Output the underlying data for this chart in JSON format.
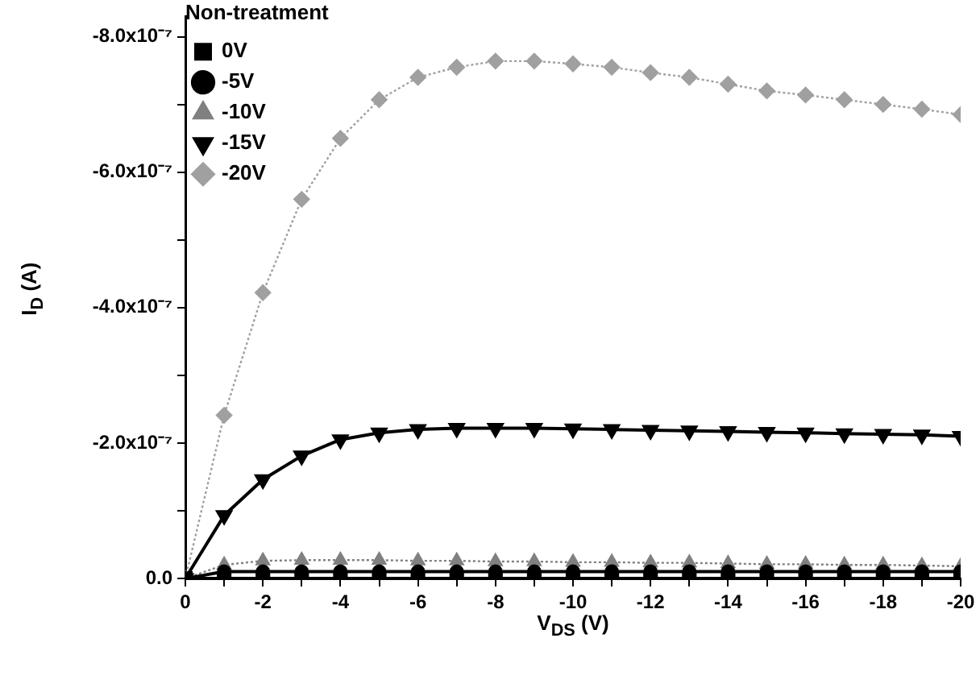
{
  "chart_data": {
    "type": "line",
    "xlabel": "V$_{DS}$ (V)",
    "ylabel": "I$_{D}$ (A)",
    "legend_title": "Non-treatment",
    "legend": "top left",
    "x": [
      0,
      -1,
      -2,
      -3,
      -4,
      -5,
      -6,
      -7,
      -8,
      -9,
      -10,
      -11,
      -12,
      -13,
      -14,
      -15,
      -16,
      -17,
      -18,
      -19,
      -20
    ],
    "series": [
      {
        "name": "0V",
        "color": "#000000",
        "marker": "square",
        "line_style": "solid",
        "values": [
          0,
          0,
          0,
          0,
          0,
          0,
          0,
          0,
          0,
          0,
          0,
          0,
          0,
          0,
          0,
          0,
          0,
          0,
          0,
          0,
          0
        ]
      },
      {
        "name": "-5V",
        "color": "#000000",
        "marker": "circle",
        "line_style": "solid",
        "values": [
          0,
          -1e-08,
          -1e-08,
          -1e-08,
          -1e-08,
          -1e-08,
          -1e-08,
          -1e-08,
          -1e-08,
          -1e-08,
          -1e-08,
          -1e-08,
          -1e-08,
          -1e-08,
          -1e-08,
          -1e-08,
          -1e-08,
          -1e-08,
          -1e-08,
          -1e-08,
          -1e-08
        ]
      },
      {
        "name": "-10V",
        "color": "#808080",
        "marker": "triangle",
        "line_style": "dotted",
        "values": [
          0,
          -2e-08,
          -2.6e-08,
          -2.7e-08,
          -2.7e-08,
          -2.7e-08,
          -2.6e-08,
          -2.6e-08,
          -2.5e-08,
          -2.5e-08,
          -2.4e-08,
          -2.4e-08,
          -2.3e-08,
          -2.3e-08,
          -2.2e-08,
          -2.1e-08,
          -2.1e-08,
          -2e-08,
          -2e-08,
          -1.9e-08,
          -1.8e-08
        ]
      },
      {
        "name": "-15V",
        "color": "#000000",
        "marker": "triangle-down",
        "line_style": "solid",
        "values": [
          0,
          -9.3e-08,
          -1.46e-07,
          -1.81e-07,
          -2.05e-07,
          -2.15e-07,
          -2.2e-07,
          -2.22e-07,
          -2.22e-07,
          -2.22e-07,
          -2.21e-07,
          -2.2e-07,
          -2.19e-07,
          -2.18e-07,
          -2.17e-07,
          -2.16e-07,
          -2.15e-07,
          -2.14e-07,
          -2.13e-07,
          -2.12e-07,
          -2.1e-07
        ]
      },
      {
        "name": "-20V",
        "color": "#a0a0a0",
        "marker": "diamond",
        "line_style": "dotted",
        "values": [
          0,
          -2.41e-07,
          -4.22e-07,
          -5.6e-07,
          -6.5e-07,
          -7.07e-07,
          -7.4e-07,
          -7.55e-07,
          -7.64e-07,
          -7.64e-07,
          -7.6e-07,
          -7.55e-07,
          -7.47e-07,
          -7.4e-07,
          -7.3e-07,
          -7.2e-07,
          -7.14e-07,
          -7.07e-07,
          -7e-07,
          -6.93e-07,
          -6.85e-07
        ]
      }
    ],
    "xlim": [
      0,
      -20
    ],
    "xticks": [
      0,
      {
        "value": -1,
        "label": null
      },
      -2,
      {
        "value": -3,
        "label": null
      },
      -4,
      {
        "value": -5,
        "label": null
      },
      -6,
      {
        "value": -7,
        "label": null
      },
      -8,
      {
        "value": -9,
        "label": null
      },
      -10,
      {
        "value": -11,
        "label": null
      },
      -12,
      {
        "value": -13,
        "label": null
      },
      -14,
      {
        "value": -15,
        "label": null
      },
      -16,
      {
        "value": -17,
        "label": null
      },
      -18,
      {
        "value": -19,
        "label": null
      },
      -20
    ],
    "ylim": [
      0,
      -8.3e-07
    ],
    "yticks": [
      {
        "value": 0,
        "label": "0.0"
      },
      {
        "value": -1e-07,
        "label": null
      },
      {
        "value": -2e-07,
        "label": "-2.0x10⁻⁷"
      },
      {
        "value": -3e-07,
        "label": null
      },
      {
        "value": -4e-07,
        "label": "-4.0x10⁻⁷"
      },
      {
        "value": -5e-07,
        "label": null
      },
      {
        "value": -6e-07,
        "label": "-6.0x10⁻⁷"
      },
      {
        "value": -7e-07,
        "label": null
      },
      {
        "value": -8e-07,
        "label": "-8.0x10⁻⁷"
      }
    ],
    "grid": false
  }
}
